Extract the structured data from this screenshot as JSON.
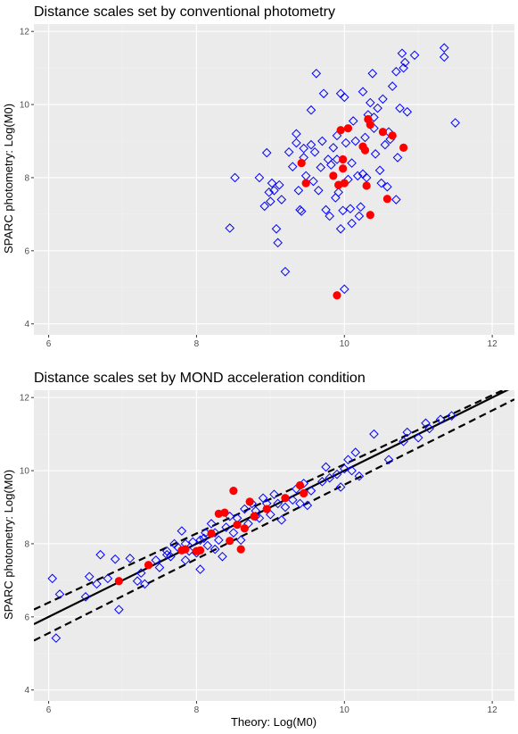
{
  "colors": {
    "panel_bg": "#ebebeb",
    "grid_major": "#ffffff",
    "grid_minor": "#f2f2f2",
    "open_diamond": "#0000ff",
    "filled_circle": "#ff0000",
    "line": "#000000",
    "tick_text": "#4d4d4d"
  },
  "chart_data": [
    {
      "type": "scatter",
      "title": "Distance scales set by conventional photometry",
      "xlabel": "",
      "ylabel": "SPARC photometry:  Log(M0)",
      "xlim": [
        5.8,
        12.3
      ],
      "ylim": [
        3.7,
        12.2
      ],
      "x_ticks": [
        6,
        8,
        10,
        12
      ],
      "y_ticks": [
        4,
        6,
        8,
        10,
        12
      ],
      "x_tick_labels": [
        "6",
        "8",
        "10",
        "12"
      ],
      "y_tick_labels": [
        "4",
        "6",
        "8",
        "10",
        "12"
      ],
      "grid": true,
      "series": [
        {
          "marker": "open-diamond",
          "color": "#0000ff",
          "points": [
            [
              8.45,
              6.62
            ],
            [
              8.52,
              8.0
            ],
            [
              8.85,
              8.0
            ],
            [
              8.92,
              7.22
            ],
            [
              8.95,
              8.68
            ],
            [
              8.98,
              7.6
            ],
            [
              9.0,
              7.35
            ],
            [
              9.02,
              7.85
            ],
            [
              9.05,
              7.65
            ],
            [
              9.08,
              6.6
            ],
            [
              9.1,
              6.22
            ],
            [
              9.12,
              7.8
            ],
            [
              9.15,
              7.4
            ],
            [
              9.2,
              5.43
            ],
            [
              9.25,
              8.7
            ],
            [
              9.3,
              8.3
            ],
            [
              9.35,
              8.95
            ],
            [
              9.38,
              7.65
            ],
            [
              9.4,
              7.12
            ],
            [
              9.42,
              7.08
            ],
            [
              9.45,
              8.55
            ],
            [
              9.48,
              8.05
            ],
            [
              9.55,
              9.85
            ],
            [
              9.58,
              7.9
            ],
            [
              9.62,
              10.85
            ],
            [
              9.65,
              7.65
            ],
            [
              9.68,
              8.28
            ],
            [
              9.72,
              10.3
            ],
            [
              9.75,
              7.12
            ],
            [
              9.78,
              8.5
            ],
            [
              9.8,
              6.95
            ],
            [
              9.82,
              8.35
            ],
            [
              9.85,
              8.82
            ],
            [
              9.88,
              7.45
            ],
            [
              9.9,
              9.15
            ],
            [
              9.92,
              7.6
            ],
            [
              9.95,
              6.6
            ],
            [
              9.98,
              7.1
            ],
            [
              10.0,
              4.95
            ],
            [
              10.0,
              10.2
            ],
            [
              10.02,
              8.95
            ],
            [
              10.05,
              7.95
            ],
            [
              10.08,
              7.15
            ],
            [
              10.1,
              6.75
            ],
            [
              10.12,
              9.55
            ],
            [
              10.15,
              9.0
            ],
            [
              10.18,
              8.05
            ],
            [
              10.2,
              6.95
            ],
            [
              10.22,
              7.2
            ],
            [
              10.25,
              8.1
            ],
            [
              10.28,
              9.1
            ],
            [
              10.3,
              8.0
            ],
            [
              10.32,
              9.72
            ],
            [
              10.35,
              10.05
            ],
            [
              10.38,
              10.85
            ],
            [
              10.4,
              9.35
            ],
            [
              10.42,
              8.65
            ],
            [
              10.45,
              9.9
            ],
            [
              10.48,
              8.2
            ],
            [
              10.5,
              7.85
            ],
            [
              10.52,
              10.15
            ],
            [
              10.55,
              8.9
            ],
            [
              10.58,
              7.75
            ],
            [
              10.6,
              9.25
            ],
            [
              10.62,
              9.05
            ],
            [
              10.65,
              10.5
            ],
            [
              10.7,
              10.9
            ],
            [
              10.72,
              8.55
            ],
            [
              10.75,
              9.9
            ],
            [
              10.78,
              11.4
            ],
            [
              10.8,
              11.0
            ],
            [
              10.82,
              11.15
            ],
            [
              10.85,
              9.8
            ],
            [
              10.95,
              11.35
            ],
            [
              11.35,
              11.55
            ],
            [
              11.35,
              11.3
            ],
            [
              11.5,
              9.5
            ],
            [
              9.9,
              8.5
            ],
            [
              9.7,
              9.0
            ],
            [
              9.6,
              8.7
            ],
            [
              10.1,
              8.4
            ],
            [
              10.25,
              10.35
            ],
            [
              9.55,
              8.9
            ],
            [
              10.7,
              7.4
            ],
            [
              9.95,
              10.3
            ],
            [
              10.4,
              9.65
            ],
            [
              9.35,
              9.2
            ],
            [
              9.45,
              8.8
            ]
          ]
        },
        {
          "marker": "filled-circle",
          "color": "#ff0000",
          "points": [
            [
              9.42,
              8.4
            ],
            [
              9.48,
              7.85
            ],
            [
              9.85,
              8.05
            ],
            [
              9.9,
              4.78
            ],
            [
              9.92,
              7.8
            ],
            [
              9.95,
              9.3
            ],
            [
              9.98,
              8.5
            ],
            [
              9.98,
              8.25
            ],
            [
              10.0,
              7.85
            ],
            [
              10.05,
              9.35
            ],
            [
              10.25,
              8.85
            ],
            [
              10.28,
              8.75
            ],
            [
              10.3,
              7.78
            ],
            [
              10.32,
              9.6
            ],
            [
              10.35,
              9.45
            ],
            [
              10.35,
              6.98
            ],
            [
              10.52,
              9.25
            ],
            [
              10.58,
              7.42
            ],
            [
              10.65,
              9.15
            ],
            [
              10.8,
              8.82
            ]
          ]
        }
      ]
    },
    {
      "type": "scatter",
      "title": "Distance scales set by MOND acceleration condition",
      "xlabel": "Theory:  Log(M0)",
      "ylabel": "SPARC photometry:  Log(M0)",
      "xlim": [
        5.8,
        12.3
      ],
      "ylim": [
        3.7,
        12.2
      ],
      "x_ticks": [
        6,
        8,
        10,
        12
      ],
      "y_ticks": [
        4,
        6,
        8,
        10,
        12
      ],
      "x_tick_labels": [
        "6",
        "8",
        "10",
        "12"
      ],
      "y_tick_labels": [
        "4",
        "6",
        "8",
        "10",
        "12"
      ],
      "grid": true,
      "lines": [
        {
          "style": "solid",
          "points": [
            [
              5.8,
              5.8
            ],
            [
              12.3,
              12.3
            ]
          ]
        },
        {
          "style": "dashed",
          "points": [
            [
              5.8,
              6.2
            ],
            [
              12.3,
              12.35
            ]
          ]
        },
        {
          "style": "dashed",
          "points": [
            [
              5.8,
              5.35
            ],
            [
              12.3,
              11.95
            ]
          ]
        }
      ],
      "series": [
        {
          "marker": "open-diamond",
          "color": "#0000ff",
          "points": [
            [
              6.05,
              7.05
            ],
            [
              6.1,
              5.42
            ],
            [
              6.15,
              6.62
            ],
            [
              6.5,
              6.55
            ],
            [
              6.55,
              7.1
            ],
            [
              6.65,
              6.9
            ],
            [
              6.7,
              7.7
            ],
            [
              6.8,
              7.05
            ],
            [
              6.9,
              7.58
            ],
            [
              6.95,
              6.2
            ],
            [
              7.1,
              7.6
            ],
            [
              7.2,
              6.98
            ],
            [
              7.25,
              7.2
            ],
            [
              7.3,
              6.9
            ],
            [
              7.45,
              7.55
            ],
            [
              7.5,
              7.35
            ],
            [
              7.6,
              7.8
            ],
            [
              7.65,
              7.65
            ],
            [
              7.7,
              8.0
            ],
            [
              7.75,
              7.9
            ],
            [
              7.8,
              8.35
            ],
            [
              7.85,
              7.55
            ],
            [
              7.9,
              7.8
            ],
            [
              7.95,
              8.05
            ],
            [
              8.0,
              7.75
            ],
            [
              8.05,
              7.3
            ],
            [
              8.1,
              8.15
            ],
            [
              8.12,
              8.3
            ],
            [
              8.15,
              7.95
            ],
            [
              8.2,
              8.55
            ],
            [
              8.25,
              7.85
            ],
            [
              8.3,
              8.1
            ],
            [
              8.35,
              7.65
            ],
            [
              8.4,
              8.45
            ],
            [
              8.45,
              8.75
            ],
            [
              8.5,
              8.3
            ],
            [
              8.55,
              8.7
            ],
            [
              8.6,
              8.1
            ],
            [
              8.65,
              8.95
            ],
            [
              8.7,
              8.55
            ],
            [
              8.75,
              9.1
            ],
            [
              8.8,
              8.9
            ],
            [
              8.85,
              8.7
            ],
            [
              8.9,
              9.25
            ],
            [
              8.95,
              9.1
            ],
            [
              9.0,
              8.8
            ],
            [
              9.05,
              9.35
            ],
            [
              9.1,
              9.1
            ],
            [
              9.15,
              8.65
            ],
            [
              9.2,
              9.0
            ],
            [
              9.3,
              9.2
            ],
            [
              9.35,
              9.5
            ],
            [
              9.4,
              9.1
            ],
            [
              9.45,
              9.65
            ],
            [
              9.5,
              9.05
            ],
            [
              9.55,
              9.45
            ],
            [
              9.7,
              9.7
            ],
            [
              9.75,
              10.1
            ],
            [
              9.8,
              9.8
            ],
            [
              9.9,
              9.9
            ],
            [
              9.95,
              9.55
            ],
            [
              10.0,
              10.05
            ],
            [
              10.05,
              10.3
            ],
            [
              10.1,
              10.0
            ],
            [
              10.15,
              10.5
            ],
            [
              10.2,
              9.85
            ],
            [
              10.4,
              11.0
            ],
            [
              10.6,
              10.3
            ],
            [
              10.8,
              10.8
            ],
            [
              10.85,
              11.05
            ],
            [
              11.0,
              10.9
            ],
            [
              11.1,
              11.3
            ],
            [
              11.15,
              11.15
            ],
            [
              11.3,
              11.4
            ],
            [
              11.45,
              11.5
            ],
            [
              7.6,
              7.7
            ],
            [
              7.85,
              8.0
            ],
            [
              8.05,
              8.1
            ],
            [
              8.25,
              8.3
            ],
            [
              8.8,
              8.75
            ]
          ]
        },
        {
          "marker": "filled-circle",
          "color": "#ff0000",
          "points": [
            [
              6.95,
              6.98
            ],
            [
              7.35,
              7.42
            ],
            [
              7.8,
              7.82
            ],
            [
              7.85,
              7.85
            ],
            [
              8.0,
              7.8
            ],
            [
              8.05,
              7.82
            ],
            [
              8.2,
              8.28
            ],
            [
              8.3,
              8.82
            ],
            [
              8.38,
              8.85
            ],
            [
              8.45,
              8.08
            ],
            [
              8.5,
              9.45
            ],
            [
              8.55,
              8.52
            ],
            [
              8.6,
              7.85
            ],
            [
              8.65,
              8.42
            ],
            [
              8.72,
              9.15
            ],
            [
              8.78,
              8.75
            ],
            [
              9.2,
              9.25
            ],
            [
              9.4,
              9.6
            ],
            [
              9.45,
              9.38
            ],
            [
              8.95,
              8.95
            ]
          ]
        }
      ]
    }
  ]
}
